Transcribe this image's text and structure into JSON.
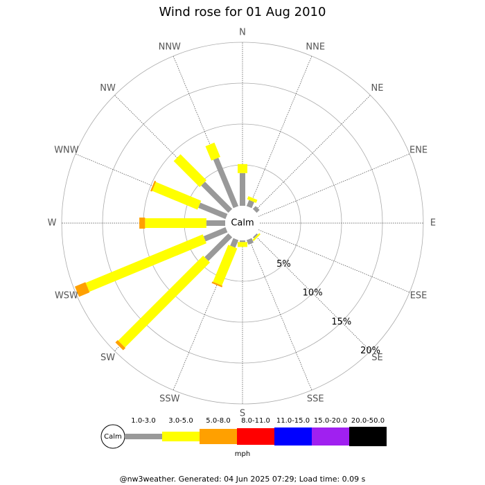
{
  "chart_data": {
    "type": "windrose",
    "title": "Wind rose for 01 Aug 2010",
    "directions": [
      "N",
      "NNE",
      "NE",
      "ENE",
      "E",
      "ESE",
      "SE",
      "SSE",
      "S",
      "SSW",
      "SW",
      "WSW",
      "W",
      "WNW",
      "NW",
      "NNW"
    ],
    "calm_label": "Calm",
    "rlim": [
      0,
      20
    ],
    "rticks": [
      {
        "value": 5,
        "label": "5%"
      },
      {
        "value": 10,
        "label": "10%"
      },
      {
        "value": 15,
        "label": "15%"
      },
      {
        "value": 20,
        "label": "20%"
      }
    ],
    "unit": "mph",
    "series": [
      {
        "name": "1.0-3.0",
        "color": "#999999",
        "values": [
          4.0,
          0.8,
          0.5,
          0,
          0,
          0,
          0.2,
          0.6,
          0.2,
          1.0,
          4.1,
          2.9,
          2.3,
          3.6,
          4.7,
          6.4
        ]
      },
      {
        "name": "3.0-5.0",
        "color": "#ffff00",
        "values": [
          1.1,
          0.4,
          0,
          0,
          0,
          0,
          0.2,
          0,
          0.6,
          4.9,
          14.7,
          15.5,
          7.5,
          6.0,
          4.5,
          1.9
        ]
      },
      {
        "name": "5.0-8.0",
        "color": "#ffa000",
        "values": [
          0,
          0,
          0,
          0,
          0,
          0,
          0,
          0,
          0,
          0.2,
          0.4,
          1.4,
          0.7,
          0.2,
          0,
          0
        ]
      },
      {
        "name": "8.0-11.0",
        "color": "#ff0000",
        "values": [
          0,
          0,
          0,
          0,
          0,
          0,
          0,
          0,
          0,
          0,
          0,
          0,
          0,
          0,
          0,
          0
        ]
      },
      {
        "name": "11.0-15.0",
        "color": "#0000ff",
        "values": [
          0,
          0,
          0,
          0,
          0,
          0,
          0,
          0,
          0,
          0,
          0,
          0,
          0,
          0,
          0,
          0
        ]
      },
      {
        "name": "15.0-20.0",
        "color": "#a020f0",
        "values": [
          0,
          0,
          0,
          0,
          0,
          0,
          0,
          0,
          0,
          0,
          0,
          0,
          0,
          0,
          0,
          0
        ]
      },
      {
        "name": "20.0-50.0",
        "color": "#000000",
        "values": [
          0,
          0,
          0,
          0,
          0,
          0,
          0,
          0,
          0,
          0,
          0,
          0,
          0,
          0,
          0,
          0
        ]
      }
    ]
  },
  "footer": "@nw3weather. Generated: 04 Jun 2025 07:29; Load time: 0.09 s"
}
